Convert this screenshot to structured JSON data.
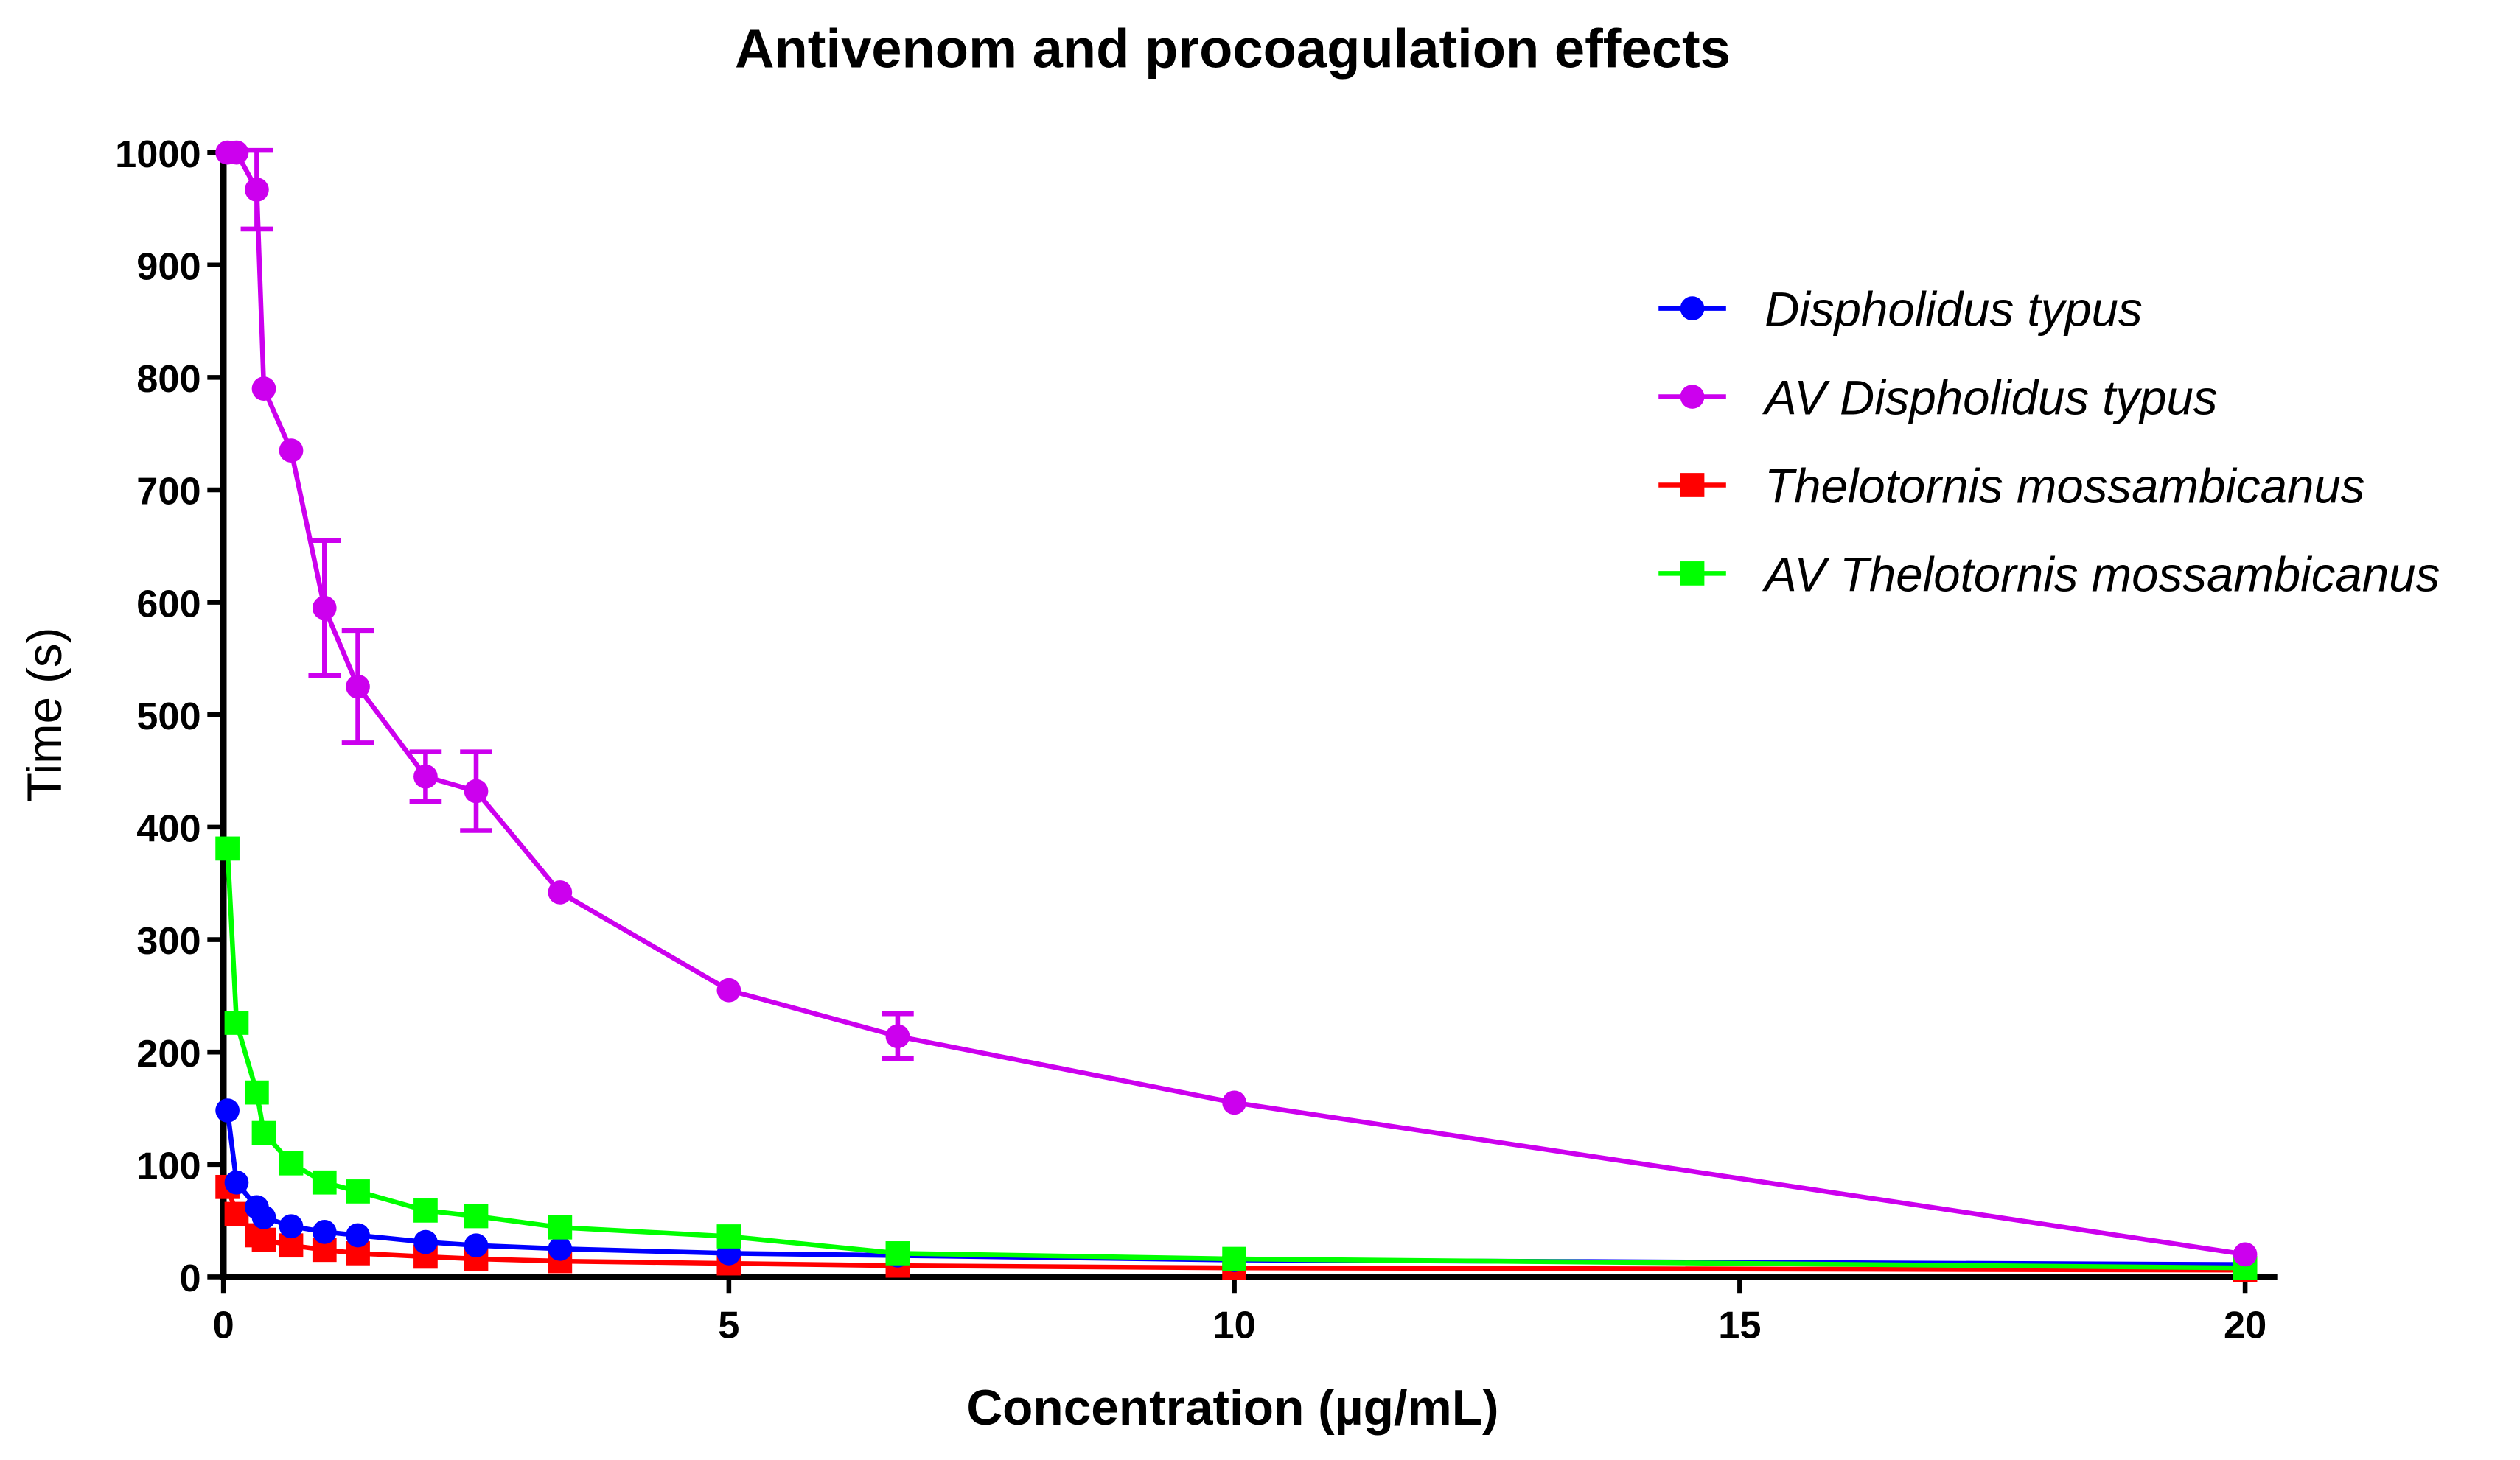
{
  "chart_data": {
    "type": "line",
    "title": "Antivenom and procoagulation effects",
    "xlabel": "Concentration (µg/mL)",
    "ylabel": "Time (s)",
    "xlim": [
      0,
      20
    ],
    "ylim": [
      0,
      1000
    ],
    "xticks": [
      0,
      5,
      10,
      15,
      20
    ],
    "yticks": [
      0,
      100,
      200,
      300,
      400,
      500,
      600,
      700,
      800,
      900,
      1000
    ],
    "grid": false,
    "legend_position": "top-right",
    "x": [
      0.04,
      0.13,
      0.33,
      0.4,
      0.67,
      1,
      1.33,
      2,
      2.5,
      3.33,
      5,
      6.67,
      10,
      20
    ],
    "series": [
      {
        "name": "Dispholidus typus",
        "color": "#0000ff",
        "marker": "circle",
        "values": [
          148,
          84,
          62,
          53,
          45,
          40,
          37,
          31,
          28,
          25,
          21,
          19,
          15,
          11
        ]
      },
      {
        "name": "AV Dispholidus typus",
        "color": "#cc00ee",
        "marker": "circle",
        "values": [
          1000,
          1000,
          967,
          790,
          735,
          595,
          525,
          445,
          432,
          342,
          255,
          214,
          155,
          20
        ],
        "errors": [
          0,
          0,
          35,
          0,
          0,
          60,
          50,
          22,
          35,
          0,
          0,
          20,
          0,
          0
        ]
      },
      {
        "name": "Thelotornis mossambicanus",
        "color": "#ff0000",
        "marker": "square",
        "values": [
          80,
          56,
          37,
          33,
          28,
          24,
          21,
          18,
          16,
          14,
          12,
          10,
          8,
          6
        ]
      },
      {
        "name": "AV Thelotornis mossambicanus",
        "color": "#00ff00",
        "marker": "square",
        "values": [
          381,
          226,
          164,
          128,
          101,
          84,
          76,
          59,
          54,
          44,
          36,
          21,
          16,
          8
        ]
      }
    ]
  }
}
